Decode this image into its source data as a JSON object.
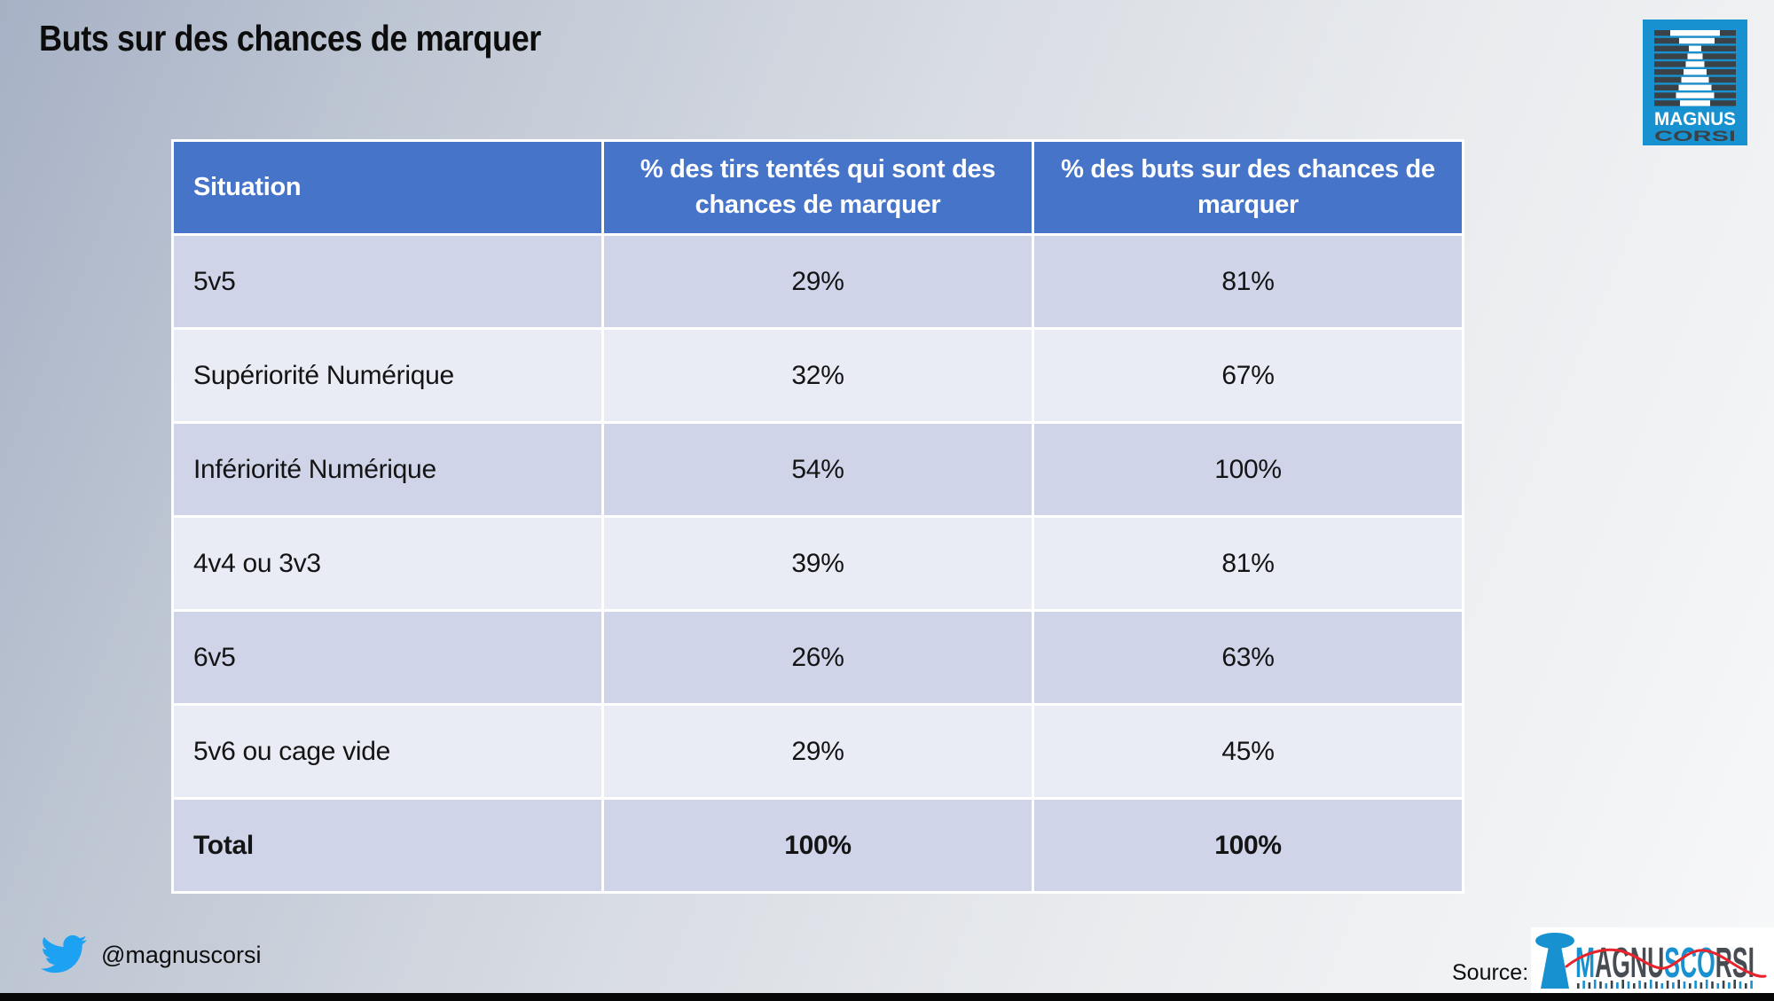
{
  "title": "Buts sur des chances de marquer",
  "table": {
    "headers": [
      "Situation",
      "% des tirs tentés qui sont des chances de marquer",
      "% des buts sur des chances de marquer"
    ],
    "rows": [
      [
        "5v5",
        "29%",
        "81%"
      ],
      [
        "Supériorité Numérique",
        "32%",
        "67%"
      ],
      [
        "Infériorité Numérique",
        "54%",
        "100%"
      ],
      [
        "4v4 ou 3v3",
        "39%",
        "81%"
      ],
      [
        "6v5",
        "26%",
        "63%"
      ],
      [
        "5v6 ou cage vide",
        "29%",
        "45%"
      ],
      [
        "Total",
        "100%",
        "100%"
      ]
    ]
  },
  "chart_data": {
    "type": "table",
    "title": "Buts sur des chances de marquer",
    "columns": [
      "Situation",
      "% des tirs tentés qui sont des chances de marquer",
      "% des buts sur des chances de marquer"
    ],
    "rows": [
      {
        "situation": "5v5",
        "tirs_chances_pct": 29,
        "buts_chances_pct": 81
      },
      {
        "situation": "Supériorité Numérique",
        "tirs_chances_pct": 32,
        "buts_chances_pct": 67
      },
      {
        "situation": "Infériorité Numérique",
        "tirs_chances_pct": 54,
        "buts_chances_pct": 100
      },
      {
        "situation": "4v4 ou 3v3",
        "tirs_chances_pct": 39,
        "buts_chances_pct": 81
      },
      {
        "situation": "6v5",
        "tirs_chances_pct": 26,
        "buts_chances_pct": 63
      },
      {
        "situation": "5v6 ou cage vide",
        "tirs_chances_pct": 29,
        "buts_chances_pct": 45
      },
      {
        "situation": "Total",
        "tirs_chances_pct": 100,
        "buts_chances_pct": 100
      }
    ]
  },
  "footer": {
    "twitter_handle": "@magnuscorsi",
    "source_label": "Source:"
  },
  "brand": {
    "corner_logo": {
      "line1": "MAGNUS",
      "line2": "CORSI"
    },
    "footer_logo_letters": [
      {
        "ch": "M",
        "color": "#1791d0"
      },
      {
        "ch": "A",
        "color": "#474c52"
      },
      {
        "ch": "G",
        "color": "#474c52"
      },
      {
        "ch": "N",
        "color": "#474c52"
      },
      {
        "ch": "U",
        "color": "#474c52"
      },
      {
        "ch": "S",
        "color": "#1791d0"
      },
      {
        "ch": "C",
        "color": "#1791d0"
      },
      {
        "ch": "O",
        "color": "#1791d0"
      },
      {
        "ch": "R",
        "color": "#474c52"
      },
      {
        "ch": "S",
        "color": "#474c52"
      },
      {
        "ch": "I",
        "color": "#474c52"
      }
    ],
    "colors": {
      "brand_blue": "#1791d0",
      "stripe_dark": "#3a4247",
      "header_blue": "#4674c9",
      "row_dark": "#cfd4e9",
      "row_light": "#e9ebf5",
      "twitter_blue": "#1da1f2",
      "trend_red": "#e8232b"
    }
  }
}
